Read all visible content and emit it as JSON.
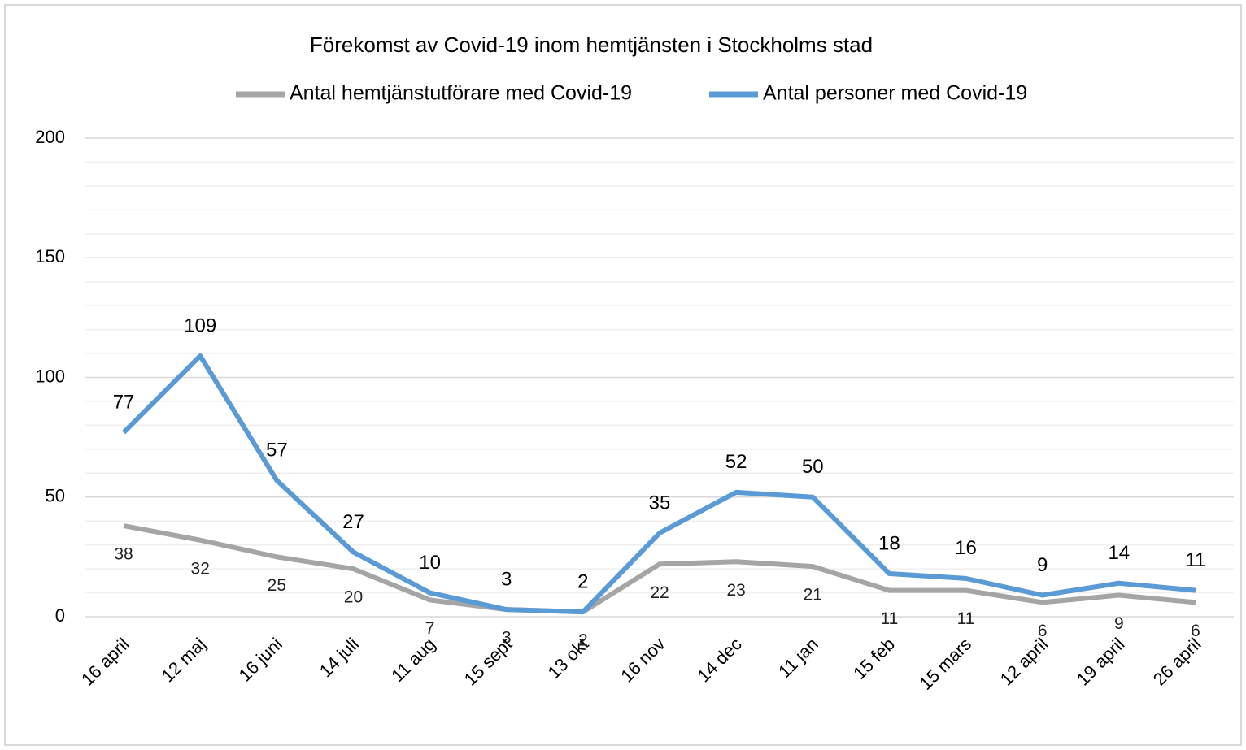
{
  "chart_data": {
    "type": "line",
    "title": "Förekomst av Covid-19 inom hemtjänsten i Stockholms stad",
    "categories": [
      "16 april",
      "12 maj",
      "16 juni",
      "14 juli",
      "11 aug",
      "15 sept",
      "13 okt",
      "16 nov",
      "14 dec",
      "11 jan",
      "15 feb",
      "15 mars",
      "12 april",
      "19 april",
      "26 april"
    ],
    "series": [
      {
        "name": "Antal hemtjänstutförare med Covid-19",
        "color": "#a5a5a5",
        "values": [
          38,
          32,
          25,
          20,
          7,
          3,
          2,
          22,
          23,
          21,
          11,
          11,
          6,
          9,
          6
        ]
      },
      {
        "name": "Antal personer med Covid-19",
        "color": "#5b9bd5",
        "values": [
          77,
          109,
          57,
          27,
          10,
          3,
          2,
          35,
          52,
          50,
          18,
          16,
          9,
          14,
          11
        ]
      }
    ],
    "ylim": [
      0,
      200
    ],
    "yticks": [
      0,
      50,
      100,
      150,
      200
    ],
    "y_minor_ticks": [
      10,
      20,
      30,
      40,
      60,
      70,
      80,
      90,
      110,
      120,
      130,
      140,
      160,
      170,
      180,
      190
    ],
    "grid": true,
    "legend": "top"
  }
}
